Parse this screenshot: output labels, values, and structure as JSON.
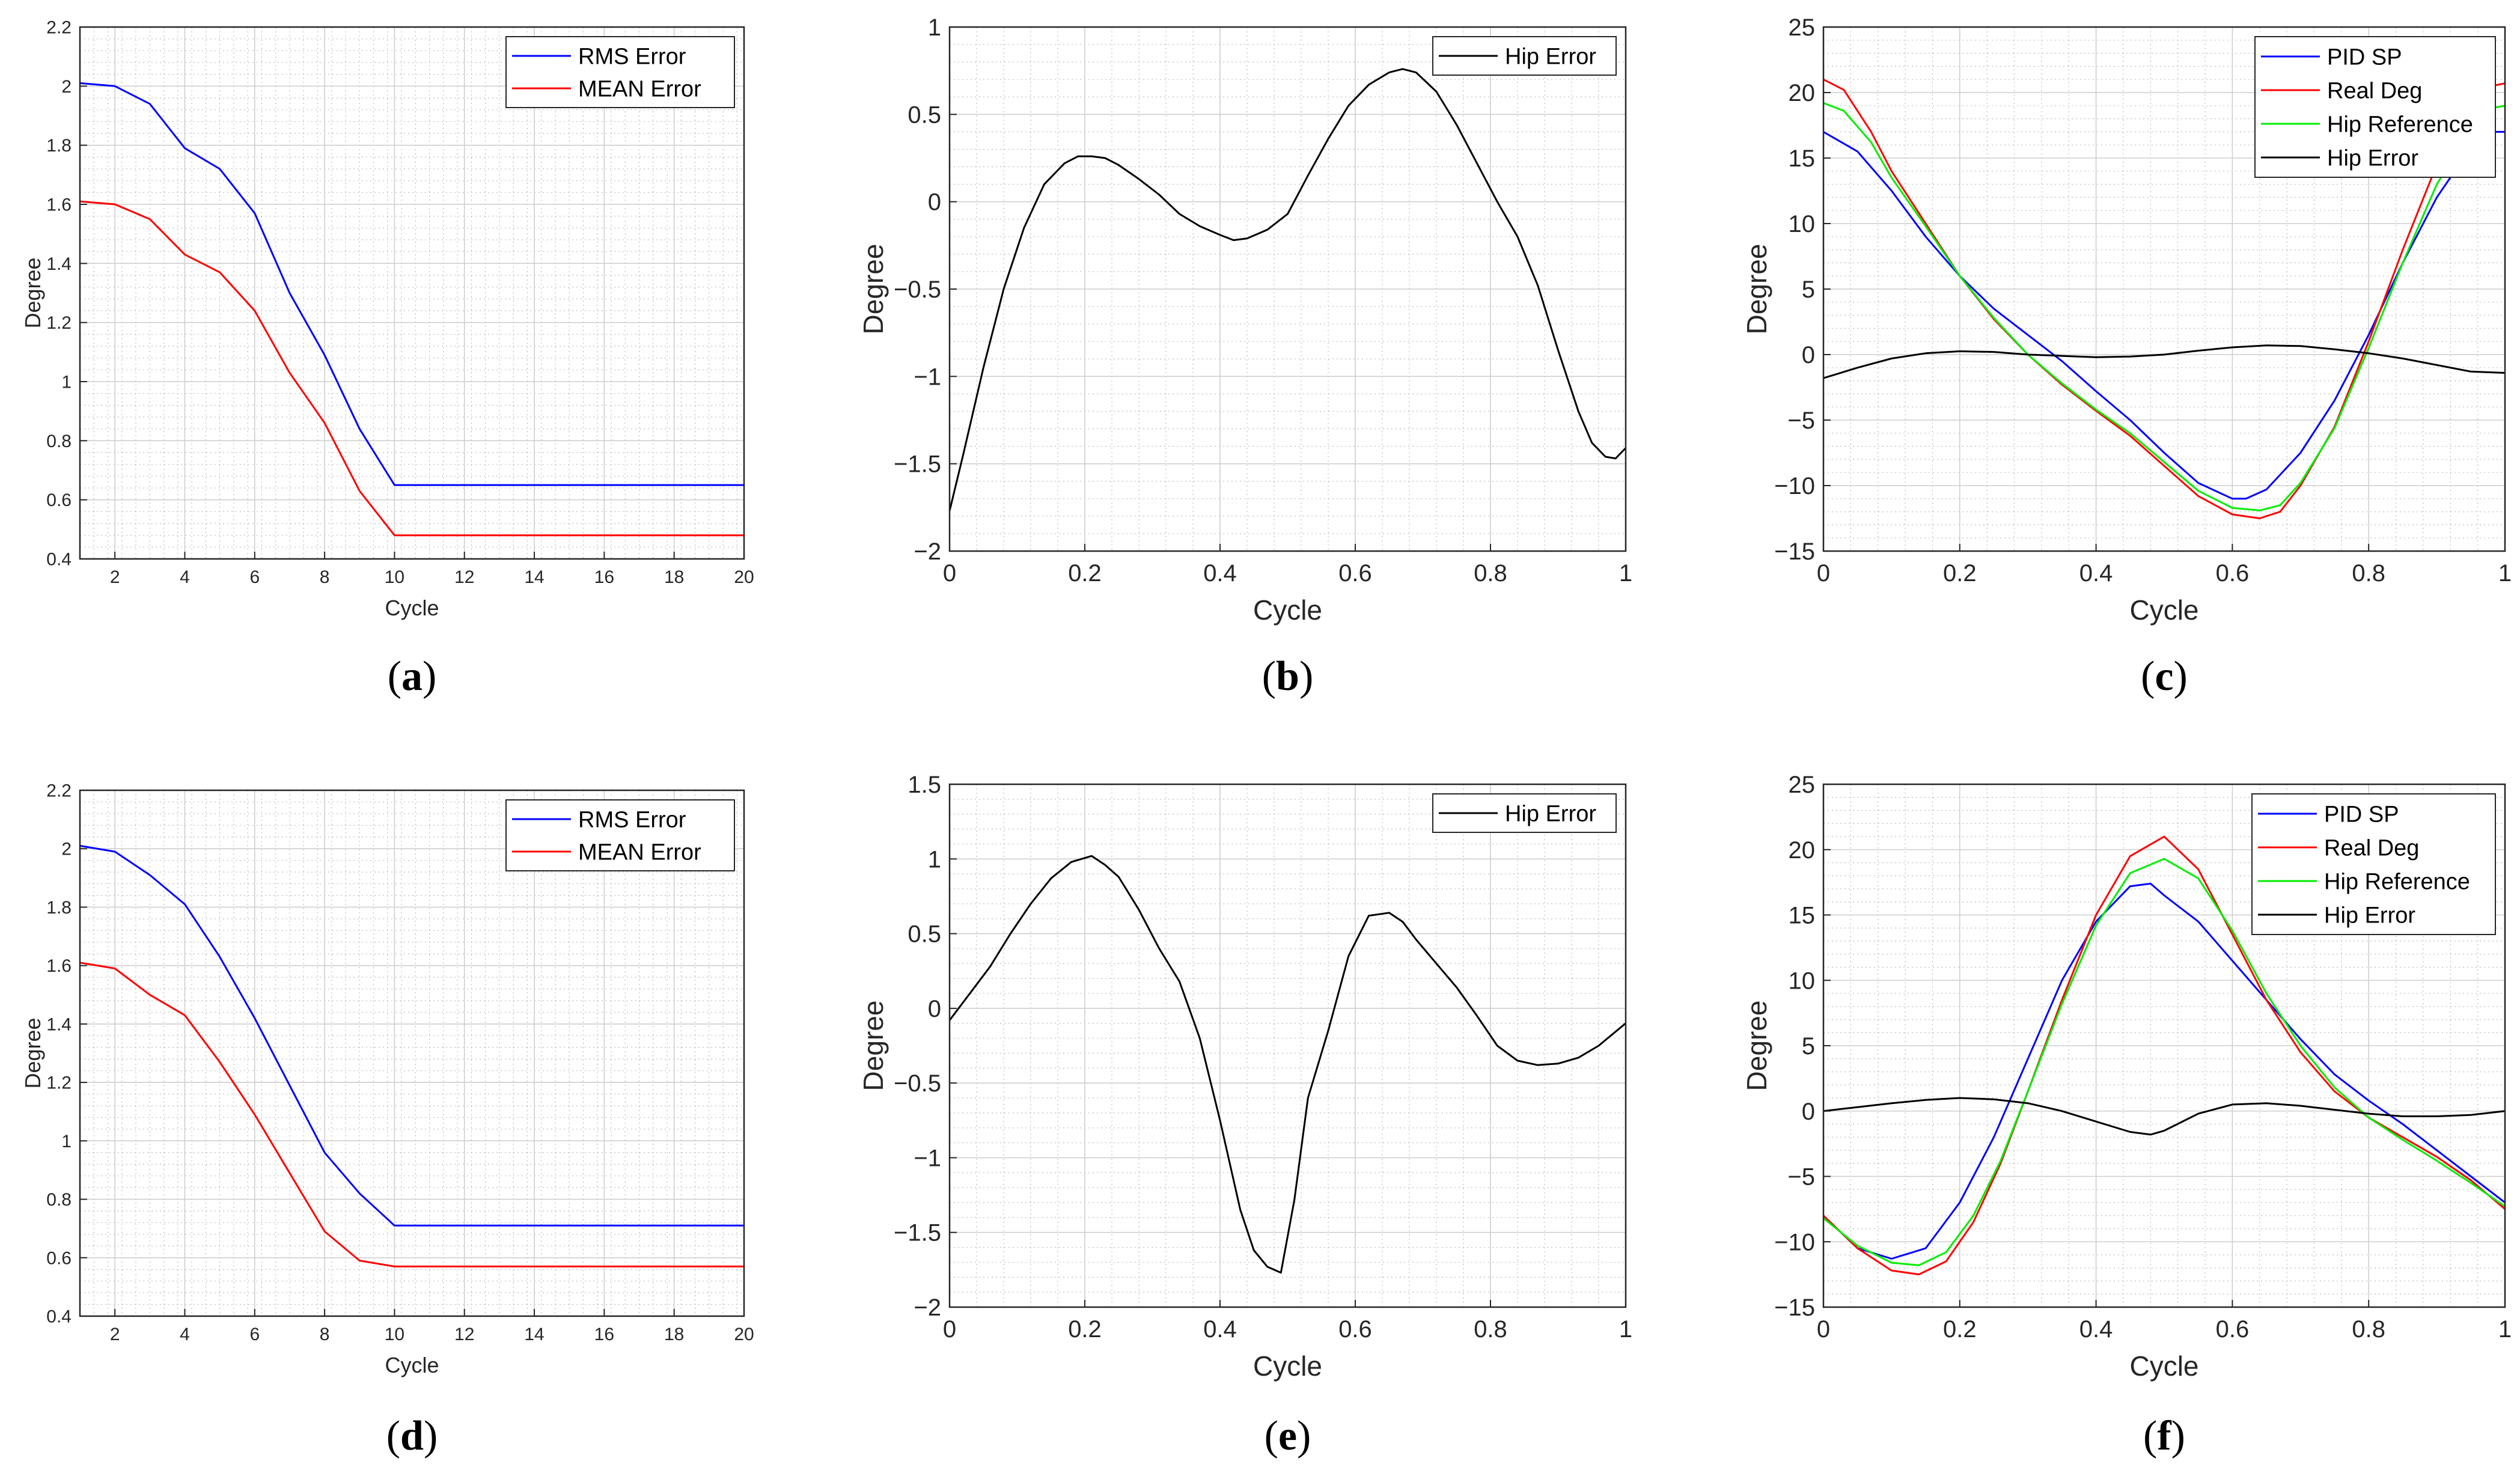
{
  "colors": {
    "blue": "#0000ff",
    "red": "#ff0000",
    "green": "#00ee00",
    "black": "#000000",
    "grid": "#bdbdbd"
  },
  "chart_data": [
    {
      "id": "a",
      "type": "line",
      "subcaption": "a",
      "xlabel": "Cycle",
      "ylabel": "Degree",
      "xlim": [
        1,
        20
      ],
      "ylim": [
        0.4,
        2.2
      ],
      "xticks": [
        2,
        4,
        6,
        8,
        10,
        12,
        14,
        16,
        18,
        20
      ],
      "xtick_labels": [
        "2",
        "4",
        "6",
        "8",
        "10",
        "12",
        "14",
        "16",
        "18",
        "20"
      ],
      "yticks": [
        0.4,
        0.6,
        0.8,
        1,
        1.2,
        1.4,
        1.6,
        1.8,
        2,
        2.2
      ],
      "ytick_labels": [
        "0.4",
        "0.6",
        "0.8",
        "1",
        "1.2",
        "1.4",
        "1.6",
        "1.8",
        "2",
        "2.2"
      ],
      "legend": "top-right",
      "series": [
        {
          "name": "RMS Error",
          "color": "#0000ff",
          "x": [
            1,
            2,
            3,
            4,
            5,
            6,
            7,
            8,
            9,
            10,
            11,
            12,
            13,
            14,
            15,
            16,
            17,
            18,
            19,
            20
          ],
          "y": [
            2.01,
            2.0,
            1.94,
            1.79,
            1.72,
            1.57,
            1.3,
            1.09,
            0.84,
            0.65,
            0.65,
            0.65,
            0.65,
            0.65,
            0.65,
            0.65,
            0.65,
            0.65,
            0.65,
            0.65
          ]
        },
        {
          "name": "MEAN Error",
          "color": "#ff0000",
          "x": [
            1,
            2,
            3,
            4,
            5,
            6,
            7,
            8,
            9,
            10,
            11,
            12,
            13,
            14,
            15,
            16,
            17,
            18,
            19,
            20
          ],
          "y": [
            1.61,
            1.6,
            1.55,
            1.43,
            1.37,
            1.24,
            1.03,
            0.86,
            0.63,
            0.48,
            0.48,
            0.48,
            0.48,
            0.48,
            0.48,
            0.48,
            0.48,
            0.48,
            0.48,
            0.48
          ]
        }
      ]
    },
    {
      "id": "b",
      "type": "line",
      "subcaption": "b",
      "xlabel": "Cycle",
      "ylabel": "Degree",
      "xlim": [
        0,
        1
      ],
      "ylim": [
        -2,
        1
      ],
      "xticks": [
        0,
        0.2,
        0.4,
        0.6,
        0.8,
        1
      ],
      "xtick_labels": [
        "0",
        "0.2",
        "0.4",
        "0.6",
        "0.8",
        "1"
      ],
      "yticks": [
        -2,
        -1.5,
        -1,
        -0.5,
        0,
        0.5,
        1
      ],
      "ytick_labels": [
        "−2",
        "−1.5",
        "−1",
        "−0.5",
        "0",
        "0.5",
        "1"
      ],
      "legend": "top-right",
      "series": [
        {
          "name": "Hip Error",
          "color": "#000000",
          "x": [
            0,
            0.02,
            0.05,
            0.08,
            0.11,
            0.14,
            0.17,
            0.19,
            0.21,
            0.23,
            0.25,
            0.28,
            0.31,
            0.34,
            0.37,
            0.4,
            0.42,
            0.44,
            0.47,
            0.5,
            0.53,
            0.56,
            0.59,
            0.62,
            0.65,
            0.67,
            0.69,
            0.72,
            0.75,
            0.78,
            0.81,
            0.84,
            0.87,
            0.9,
            0.93,
            0.95,
            0.97,
            0.985,
            1.0
          ],
          "y": [
            -1.77,
            -1.45,
            -0.95,
            -0.5,
            -0.15,
            0.1,
            0.22,
            0.26,
            0.26,
            0.25,
            0.21,
            0.13,
            0.04,
            -0.07,
            -0.14,
            -0.19,
            -0.22,
            -0.21,
            -0.16,
            -0.07,
            0.15,
            0.36,
            0.55,
            0.67,
            0.74,
            0.76,
            0.74,
            0.63,
            0.44,
            0.22,
            0.0,
            -0.2,
            -0.48,
            -0.85,
            -1.2,
            -1.38,
            -1.46,
            -1.47,
            -1.41
          ]
        }
      ]
    },
    {
      "id": "c",
      "type": "line",
      "subcaption": "c",
      "xlabel": "Cycle",
      "ylabel": "Degree",
      "xlim": [
        0,
        1
      ],
      "ylim": [
        -15,
        25
      ],
      "xticks": [
        0,
        0.2,
        0.4,
        0.6,
        0.8,
        1
      ],
      "xtick_labels": [
        "0",
        "0.2",
        "0.4",
        "0.6",
        "0.8",
        "1"
      ],
      "yticks": [
        -15,
        -10,
        -5,
        0,
        5,
        10,
        15,
        20,
        25
      ],
      "ytick_labels": [
        "−15",
        "−10",
        "−5",
        "0",
        "5",
        "10",
        "15",
        "20",
        "25"
      ],
      "legend": "top-right",
      "series": [
        {
          "name": "PID SP",
          "color": "#0000ff",
          "x": [
            0,
            0.05,
            0.1,
            0.15,
            0.2,
            0.25,
            0.3,
            0.35,
            0.4,
            0.45,
            0.5,
            0.55,
            0.6,
            0.62,
            0.65,
            0.7,
            0.75,
            0.8,
            0.85,
            0.9,
            0.95,
            0.98,
            1.0
          ],
          "y": [
            17.0,
            15.5,
            12.5,
            9.0,
            6.0,
            3.5,
            1.5,
            -0.5,
            -2.8,
            -5.0,
            -7.5,
            -9.8,
            -11.0,
            -11.0,
            -10.3,
            -7.5,
            -3.5,
            1.5,
            7.0,
            12.0,
            15.8,
            17.0,
            17.0
          ]
        },
        {
          "name": "Real Deg",
          "color": "#ff0000",
          "x": [
            0,
            0.03,
            0.07,
            0.1,
            0.15,
            0.2,
            0.25,
            0.3,
            0.35,
            0.4,
            0.45,
            0.5,
            0.55,
            0.6,
            0.64,
            0.67,
            0.7,
            0.75,
            0.8,
            0.85,
            0.9,
            0.95,
            0.98,
            1.0
          ],
          "y": [
            21.0,
            20.2,
            17.0,
            14.0,
            10.0,
            6.0,
            2.7,
            0.0,
            -2.3,
            -4.3,
            -6.2,
            -8.5,
            -10.8,
            -12.2,
            -12.5,
            -12.0,
            -10.0,
            -5.5,
            1.0,
            8.0,
            14.5,
            19.0,
            20.5,
            20.7
          ]
        },
        {
          "name": "Hip Reference",
          "color": "#00ee00",
          "x": [
            0,
            0.03,
            0.07,
            0.1,
            0.15,
            0.2,
            0.25,
            0.3,
            0.35,
            0.4,
            0.45,
            0.5,
            0.55,
            0.6,
            0.64,
            0.67,
            0.7,
            0.75,
            0.8,
            0.85,
            0.9,
            0.95,
            0.98,
            1.0
          ],
          "y": [
            19.2,
            18.6,
            16.2,
            13.5,
            9.8,
            6.0,
            2.8,
            0.0,
            -2.2,
            -4.2,
            -6.0,
            -8.2,
            -10.4,
            -11.7,
            -11.9,
            -11.5,
            -9.8,
            -5.6,
            0.5,
            7.0,
            13.0,
            17.2,
            18.8,
            19.0
          ]
        },
        {
          "name": "Hip Error",
          "color": "#000000",
          "x": [
            0,
            0.05,
            0.1,
            0.15,
            0.2,
            0.25,
            0.3,
            0.35,
            0.4,
            0.45,
            0.5,
            0.55,
            0.6,
            0.65,
            0.7,
            0.75,
            0.8,
            0.85,
            0.9,
            0.95,
            1.0
          ],
          "y": [
            -1.8,
            -1.0,
            -0.3,
            0.1,
            0.25,
            0.2,
            0.0,
            -0.1,
            -0.2,
            -0.15,
            0.0,
            0.3,
            0.55,
            0.7,
            0.65,
            0.4,
            0.1,
            -0.3,
            -0.8,
            -1.3,
            -1.4
          ]
        }
      ]
    },
    {
      "id": "d",
      "type": "line",
      "subcaption": "d",
      "xlabel": "Cycle",
      "ylabel": "Degree",
      "xlim": [
        1,
        20
      ],
      "ylim": [
        0.4,
        2.2
      ],
      "xticks": [
        2,
        4,
        6,
        8,
        10,
        12,
        14,
        16,
        18,
        20
      ],
      "xtick_labels": [
        "2",
        "4",
        "6",
        "8",
        "10",
        "12",
        "14",
        "16",
        "18",
        "20"
      ],
      "yticks": [
        0.4,
        0.6,
        0.8,
        1,
        1.2,
        1.4,
        1.6,
        1.8,
        2,
        2.2
      ],
      "ytick_labels": [
        "0.4",
        "0.6",
        "0.8",
        "1",
        "1.2",
        "1.4",
        "1.6",
        "1.8",
        "2",
        "2.2"
      ],
      "legend": "top-right",
      "series": [
        {
          "name": "RMS Error",
          "color": "#0000ff",
          "x": [
            1,
            2,
            3,
            4,
            5,
            6,
            7,
            8,
            9,
            10,
            11,
            12,
            13,
            14,
            15,
            16,
            17,
            18,
            19,
            20
          ],
          "y": [
            2.01,
            1.99,
            1.91,
            1.81,
            1.63,
            1.42,
            1.19,
            0.96,
            0.82,
            0.71,
            0.71,
            0.71,
            0.71,
            0.71,
            0.71,
            0.71,
            0.71,
            0.71,
            0.71,
            0.71
          ]
        },
        {
          "name": "MEAN Error",
          "color": "#ff0000",
          "x": [
            1,
            2,
            3,
            4,
            5,
            6,
            7,
            8,
            9,
            10,
            11,
            12,
            13,
            14,
            15,
            16,
            17,
            18,
            19,
            20
          ],
          "y": [
            1.61,
            1.59,
            1.5,
            1.43,
            1.27,
            1.09,
            0.89,
            0.69,
            0.59,
            0.57,
            0.57,
            0.57,
            0.57,
            0.57,
            0.57,
            0.57,
            0.57,
            0.57,
            0.57,
            0.57
          ]
        }
      ]
    },
    {
      "id": "e",
      "type": "line",
      "subcaption": "e",
      "xlabel": "Cycle",
      "ylabel": "Degree",
      "xlim": [
        0,
        1
      ],
      "ylim": [
        -2,
        1.5
      ],
      "xticks": [
        0,
        0.2,
        0.4,
        0.6,
        0.8,
        1
      ],
      "xtick_labels": [
        "0",
        "0.2",
        "0.4",
        "0.6",
        "0.8",
        "1"
      ],
      "yticks": [
        -2,
        -1.5,
        -1,
        -0.5,
        0,
        0.5,
        1,
        1.5
      ],
      "ytick_labels": [
        "−2",
        "−1.5",
        "−1",
        "−0.5",
        "0",
        "0.5",
        "1",
        "1.5"
      ],
      "legend": "top-right",
      "series": [
        {
          "name": "Hip Error",
          "color": "#000000",
          "x": [
            0,
            0.03,
            0.06,
            0.09,
            0.12,
            0.15,
            0.18,
            0.21,
            0.23,
            0.25,
            0.28,
            0.31,
            0.34,
            0.37,
            0.4,
            0.43,
            0.45,
            0.47,
            0.49,
            0.51,
            0.53,
            0.56,
            0.59,
            0.62,
            0.65,
            0.67,
            0.69,
            0.72,
            0.75,
            0.78,
            0.81,
            0.84,
            0.87,
            0.9,
            0.93,
            0.96,
            1.0
          ],
          "y": [
            -0.08,
            0.1,
            0.28,
            0.5,
            0.7,
            0.87,
            0.98,
            1.02,
            0.96,
            0.88,
            0.66,
            0.4,
            0.18,
            -0.2,
            -0.75,
            -1.35,
            -1.62,
            -1.73,
            -1.77,
            -1.28,
            -0.6,
            -0.15,
            0.35,
            0.62,
            0.64,
            0.58,
            0.46,
            0.3,
            0.14,
            -0.05,
            -0.25,
            -0.35,
            -0.38,
            -0.37,
            -0.33,
            -0.25,
            -0.1
          ]
        }
      ]
    },
    {
      "id": "f",
      "type": "line",
      "subcaption": "f",
      "xlabel": "Cycle",
      "ylabel": "Degree",
      "xlim": [
        0,
        1
      ],
      "ylim": [
        -15,
        25
      ],
      "xticks": [
        0,
        0.2,
        0.4,
        0.6,
        0.8,
        1
      ],
      "xtick_labels": [
        "0",
        "0.2",
        "0.4",
        "0.6",
        "0.8",
        "1"
      ],
      "yticks": [
        -15,
        -10,
        -5,
        0,
        5,
        10,
        15,
        20,
        25
      ],
      "ytick_labels": [
        "−15",
        "−10",
        "−5",
        "0",
        "5",
        "10",
        "15",
        "20",
        "25"
      ],
      "legend": "top-right",
      "series": [
        {
          "name": "PID SP",
          "color": "#0000ff",
          "x": [
            0,
            0.05,
            0.1,
            0.15,
            0.2,
            0.25,
            0.3,
            0.35,
            0.4,
            0.45,
            0.48,
            0.5,
            0.55,
            0.6,
            0.65,
            0.7,
            0.75,
            0.8,
            0.85,
            0.9,
            0.95,
            1.0
          ],
          "y": [
            -8.0,
            -10.5,
            -11.3,
            -10.5,
            -7.0,
            -2.0,
            4.0,
            10.0,
            14.5,
            17.2,
            17.4,
            16.5,
            14.5,
            11.5,
            8.5,
            5.5,
            2.8,
            0.8,
            -1.0,
            -3.0,
            -5.0,
            -7.0
          ]
        },
        {
          "name": "Real Deg",
          "color": "#ff0000",
          "x": [
            0,
            0.05,
            0.1,
            0.14,
            0.18,
            0.22,
            0.26,
            0.3,
            0.35,
            0.4,
            0.45,
            0.5,
            0.55,
            0.6,
            0.65,
            0.7,
            0.75,
            0.8,
            0.85,
            0.9,
            0.95,
            1.0
          ],
          "y": [
            -8.0,
            -10.5,
            -12.2,
            -12.5,
            -11.5,
            -8.5,
            -4.0,
            1.5,
            8.5,
            15.0,
            19.5,
            21.0,
            18.5,
            13.5,
            8.5,
            4.5,
            1.5,
            -0.5,
            -2.0,
            -3.5,
            -5.3,
            -7.5
          ]
        },
        {
          "name": "Hip Reference",
          "color": "#00ee00",
          "x": [
            0,
            0.05,
            0.1,
            0.14,
            0.18,
            0.22,
            0.26,
            0.3,
            0.35,
            0.4,
            0.45,
            0.5,
            0.55,
            0.6,
            0.65,
            0.7,
            0.75,
            0.8,
            0.85,
            0.9,
            0.95,
            1.0
          ],
          "y": [
            -8.2,
            -10.3,
            -11.6,
            -11.8,
            -10.8,
            -8.0,
            -3.8,
            1.5,
            8.2,
            14.2,
            18.2,
            19.3,
            17.8,
            13.8,
            9.0,
            5.0,
            1.8,
            -0.5,
            -2.2,
            -3.8,
            -5.5,
            -7.3
          ]
        },
        {
          "name": "Hip Error",
          "color": "#000000",
          "x": [
            0,
            0.05,
            0.1,
            0.15,
            0.2,
            0.25,
            0.3,
            0.35,
            0.4,
            0.45,
            0.48,
            0.5,
            0.55,
            0.6,
            0.65,
            0.7,
            0.75,
            0.8,
            0.85,
            0.9,
            0.95,
            1.0
          ],
          "y": [
            0.0,
            0.3,
            0.6,
            0.85,
            1.0,
            0.9,
            0.6,
            0.0,
            -0.8,
            -1.6,
            -1.8,
            -1.5,
            -0.2,
            0.5,
            0.6,
            0.4,
            0.1,
            -0.2,
            -0.4,
            -0.4,
            -0.3,
            0.0
          ]
        }
      ]
    }
  ]
}
